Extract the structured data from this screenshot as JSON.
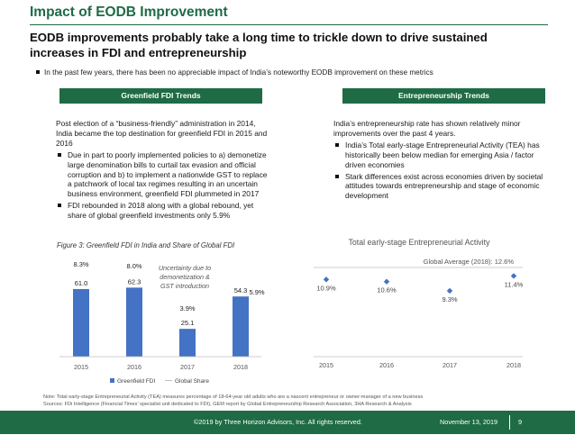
{
  "slide": {
    "title": "Impact of EODB Improvement",
    "headline": "EODB improvements probably take a long time to trickle down to drive sustained increases in FDI and entrepreneurship",
    "intro": "In the past few years, there has been no appreciable impact of India’s noteworthy EODB improvement on these metrics"
  },
  "left": {
    "header": "Greenfield FDI Trends",
    "para": "Post election of a “business-friendly” administration in 2014, India became the top destination for greenfield FDI in 2015 and 2016",
    "bullets": [
      "Due in part to poorly implemented policies to a) demonetize large denomination bills to curtail tax evasion and official corruption and b) to implement a nationwide GST to replace a patchwork of local tax regimes resulting in an uncertain business environment, greenfield FDI plummeted in 2017",
      "FDI rebounded in 2018 along with a global rebound, yet share of global greenfield investments only 5.9%"
    ],
    "caption": "Figure 3: Greenfield FDI in India and Share of Global FDI"
  },
  "right": {
    "header": "Entrepreneurship Trends",
    "para": "India’s entrepreneurship rate has shown relatively minor improvements over the past 4 years.",
    "bullets": [
      "India’s Total early-stage Entrepreneurial Activity (TEA) has historically been below median for emerging Asia / factor driven economies",
      "Stark differences exist across economies driven by societal attitudes towards entrepreneurship and stage of economic development"
    ]
  },
  "note": {
    "line1": "Note: Total early-stage Entrepreneurial Activity (TEA) measures percentage of 18-64-year old adults who are a nascent entrepreneur or owner-manager of a new business",
    "line2": "Sources: FDi Intelligence (Financial Times’ specialist unit dedicated to FDI), GEM report by Global Entrepreneurship Research Association, 3HA Research & Analysis"
  },
  "footer": {
    "copyright": "©2019 by Three Horizon Advisors, Inc. All rights reserved.",
    "date": "November 13, 2019",
    "page": "9"
  },
  "colors": {
    "brand_green": "#1e6b45",
    "bar_blue": "#4472c4"
  },
  "chart_data": [
    {
      "type": "bar",
      "title": "",
      "categories": [
        "2015",
        "2016",
        "2017",
        "2018"
      ],
      "series": [
        {
          "name": "Greenfield FDI",
          "values": [
            61.0,
            62.3,
            25.1,
            54.3
          ],
          "labels": [
            "61.0",
            "62.3",
            "25.1",
            "54.3"
          ]
        },
        {
          "name": "Global Share",
          "values": [
            8.3,
            8.0,
            3.9,
            5.9
          ],
          "labels": [
            "8.3%",
            "8.0%",
            "3.9%",
            "5.9%"
          ]
        }
      ],
      "annotation": "Uncertainty due to demonetization & GST introduction",
      "ylim": [
        0,
        100
      ],
      "legend": "bottom",
      "grid": false
    },
    {
      "type": "scatter",
      "title": "Total early-stage Entrepreneurial Activity",
      "categories": [
        "2015",
        "2016",
        "2017",
        "2018"
      ],
      "values": [
        10.9,
        10.6,
        9.3,
        11.4
      ],
      "labels": [
        "10.9%",
        "10.6%",
        "9.3%",
        "11.4%"
      ],
      "reference_line": {
        "label": "Global Average (2018): 12.6%",
        "value": 12.6
      },
      "ylim": [
        0,
        14
      ],
      "grid": false
    }
  ]
}
